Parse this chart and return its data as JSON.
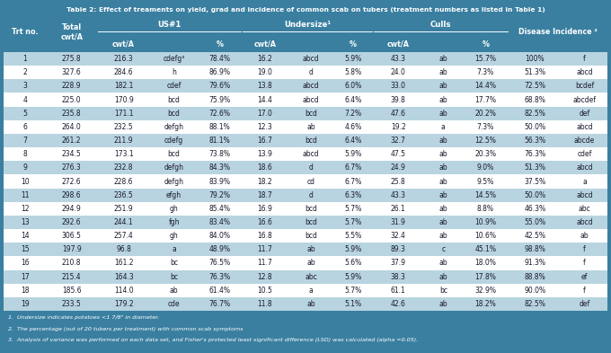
{
  "title": "Table 2: Effect of treaments on yield, grad and incidence of common scab on tubers (treatment numbers as listed in Table 1)",
  "rows": [
    [
      "1",
      "275.8",
      "216.3",
      "cdefg³",
      "78.4%",
      "16.2",
      "abcd",
      "5.9%",
      "43.3",
      "ab",
      "15.7%",
      "100%",
      "f"
    ],
    [
      "2",
      "327.6",
      "284.6",
      "h",
      "86.9%",
      "19.0",
      "d",
      "5.8%",
      "24.0",
      "ab",
      "7.3%",
      "51.3%",
      "abcd"
    ],
    [
      "3",
      "228.9",
      "182.1",
      "cdef",
      "79.6%",
      "13.8",
      "abcd",
      "6.0%",
      "33.0",
      "ab",
      "14.4%",
      "72.5%",
      "bcdef"
    ],
    [
      "4",
      "225.0",
      "170.9",
      "bcd",
      "75.9%",
      "14.4",
      "abcd",
      "6.4%",
      "39.8",
      "ab",
      "17.7%",
      "68.8%",
      "abcdef"
    ],
    [
      "5",
      "235.8",
      "171.1",
      "bcd",
      "72.6%",
      "17.0",
      "bcd",
      "7.2%",
      "47.6",
      "ab",
      "20.2%",
      "82.5%",
      "def"
    ],
    [
      "6",
      "264.0",
      "232.5",
      "defgh",
      "88.1%",
      "12.3",
      "ab",
      "4.6%",
      "19.2",
      "a",
      "7.3%",
      "50.0%",
      "abcd"
    ],
    [
      "7",
      "261.2",
      "211.9",
      "cdefg",
      "81.1%",
      "16.7",
      "bcd",
      "6.4%",
      "32.7",
      "ab",
      "12.5%",
      "56.3%",
      "abcde"
    ],
    [
      "8",
      "234.5",
      "173.1",
      "bcd",
      "73.8%",
      "13.9",
      "abcd",
      "5.9%",
      "47.5",
      "ab",
      "20.3%",
      "76.3%",
      "cdef"
    ],
    [
      "9",
      "276.3",
      "232.8",
      "defgh",
      "84.3%",
      "18.6",
      "d",
      "6.7%",
      "24.9",
      "ab",
      "9.0%",
      "51.3%",
      "abcd"
    ],
    [
      "10",
      "272.6",
      "228.6",
      "defgh",
      "83.9%",
      "18.2",
      "cd",
      "6.7%",
      "25.8",
      "ab",
      "9.5%",
      "37.5%",
      "a"
    ],
    [
      "11",
      "298.6",
      "236.5",
      "efgh",
      "79.2%",
      "18.7",
      "d",
      "6.3%",
      "43.3",
      "ab",
      "14.5%",
      "50.0%",
      "abcd"
    ],
    [
      "12",
      "294.9",
      "251.9",
      "gh",
      "85.4%",
      "16.9",
      "bcd",
      "5.7%",
      "26.1",
      "ab",
      "8.8%",
      "46.3%",
      "abc"
    ],
    [
      "13",
      "292.6",
      "244.1",
      "fgh",
      "83.4%",
      "16.6",
      "bcd",
      "5.7%",
      "31.9",
      "ab",
      "10.9%",
      "55.0%",
      "abcd"
    ],
    [
      "14",
      "306.5",
      "257.4",
      "gh",
      "84.0%",
      "16.8",
      "bcd",
      "5.5%",
      "32.4",
      "ab",
      "10.6%",
      "42.5%",
      "ab"
    ],
    [
      "15",
      "197.9",
      "96.8",
      "a",
      "48.9%",
      "11.7",
      "ab",
      "5.9%",
      "89.3",
      "c",
      "45.1%",
      "98.8%",
      "f"
    ],
    [
      "16",
      "210.8",
      "161.2",
      "bc",
      "76.5%",
      "11.7",
      "ab",
      "5.6%",
      "37.9",
      "ab",
      "18.0%",
      "91.3%",
      "f"
    ],
    [
      "17",
      "215.4",
      "164.3",
      "bc",
      "76.3%",
      "12.8",
      "abc",
      "5.9%",
      "38.3",
      "ab",
      "17.8%",
      "88.8%",
      "ef"
    ],
    [
      "18",
      "185.6",
      "114.0",
      "ab",
      "61.4%",
      "10.5",
      "a",
      "5.7%",
      "61.1",
      "bc",
      "32.9%",
      "90.0%",
      "f"
    ],
    [
      "19",
      "233.5",
      "179.2",
      "cde",
      "76.7%",
      "11.8",
      "ab",
      "5.1%",
      "42.6",
      "ab",
      "18.2%",
      "82.5%",
      "def"
    ]
  ],
  "footnotes": [
    "1.  Undersize indicates potatoes <1 7/8\" in diameter.",
    "2.  The percentage (out of 20 tubers per treatment) with common scab symptoms",
    "3.  Analysis of variance was performed on each data set, and Fisher's protected least significant difference (LSD) was calculated (alpha =0.05)."
  ],
  "header_bg": "#3a7fa0",
  "row_bg_light": "#b8d4e0",
  "row_bg_white": "#ffffff",
  "header_text": "#ffffff",
  "data_text": "#1a1a2e",
  "title_bg": "#3a7fa0",
  "title_text": "#ffffff"
}
